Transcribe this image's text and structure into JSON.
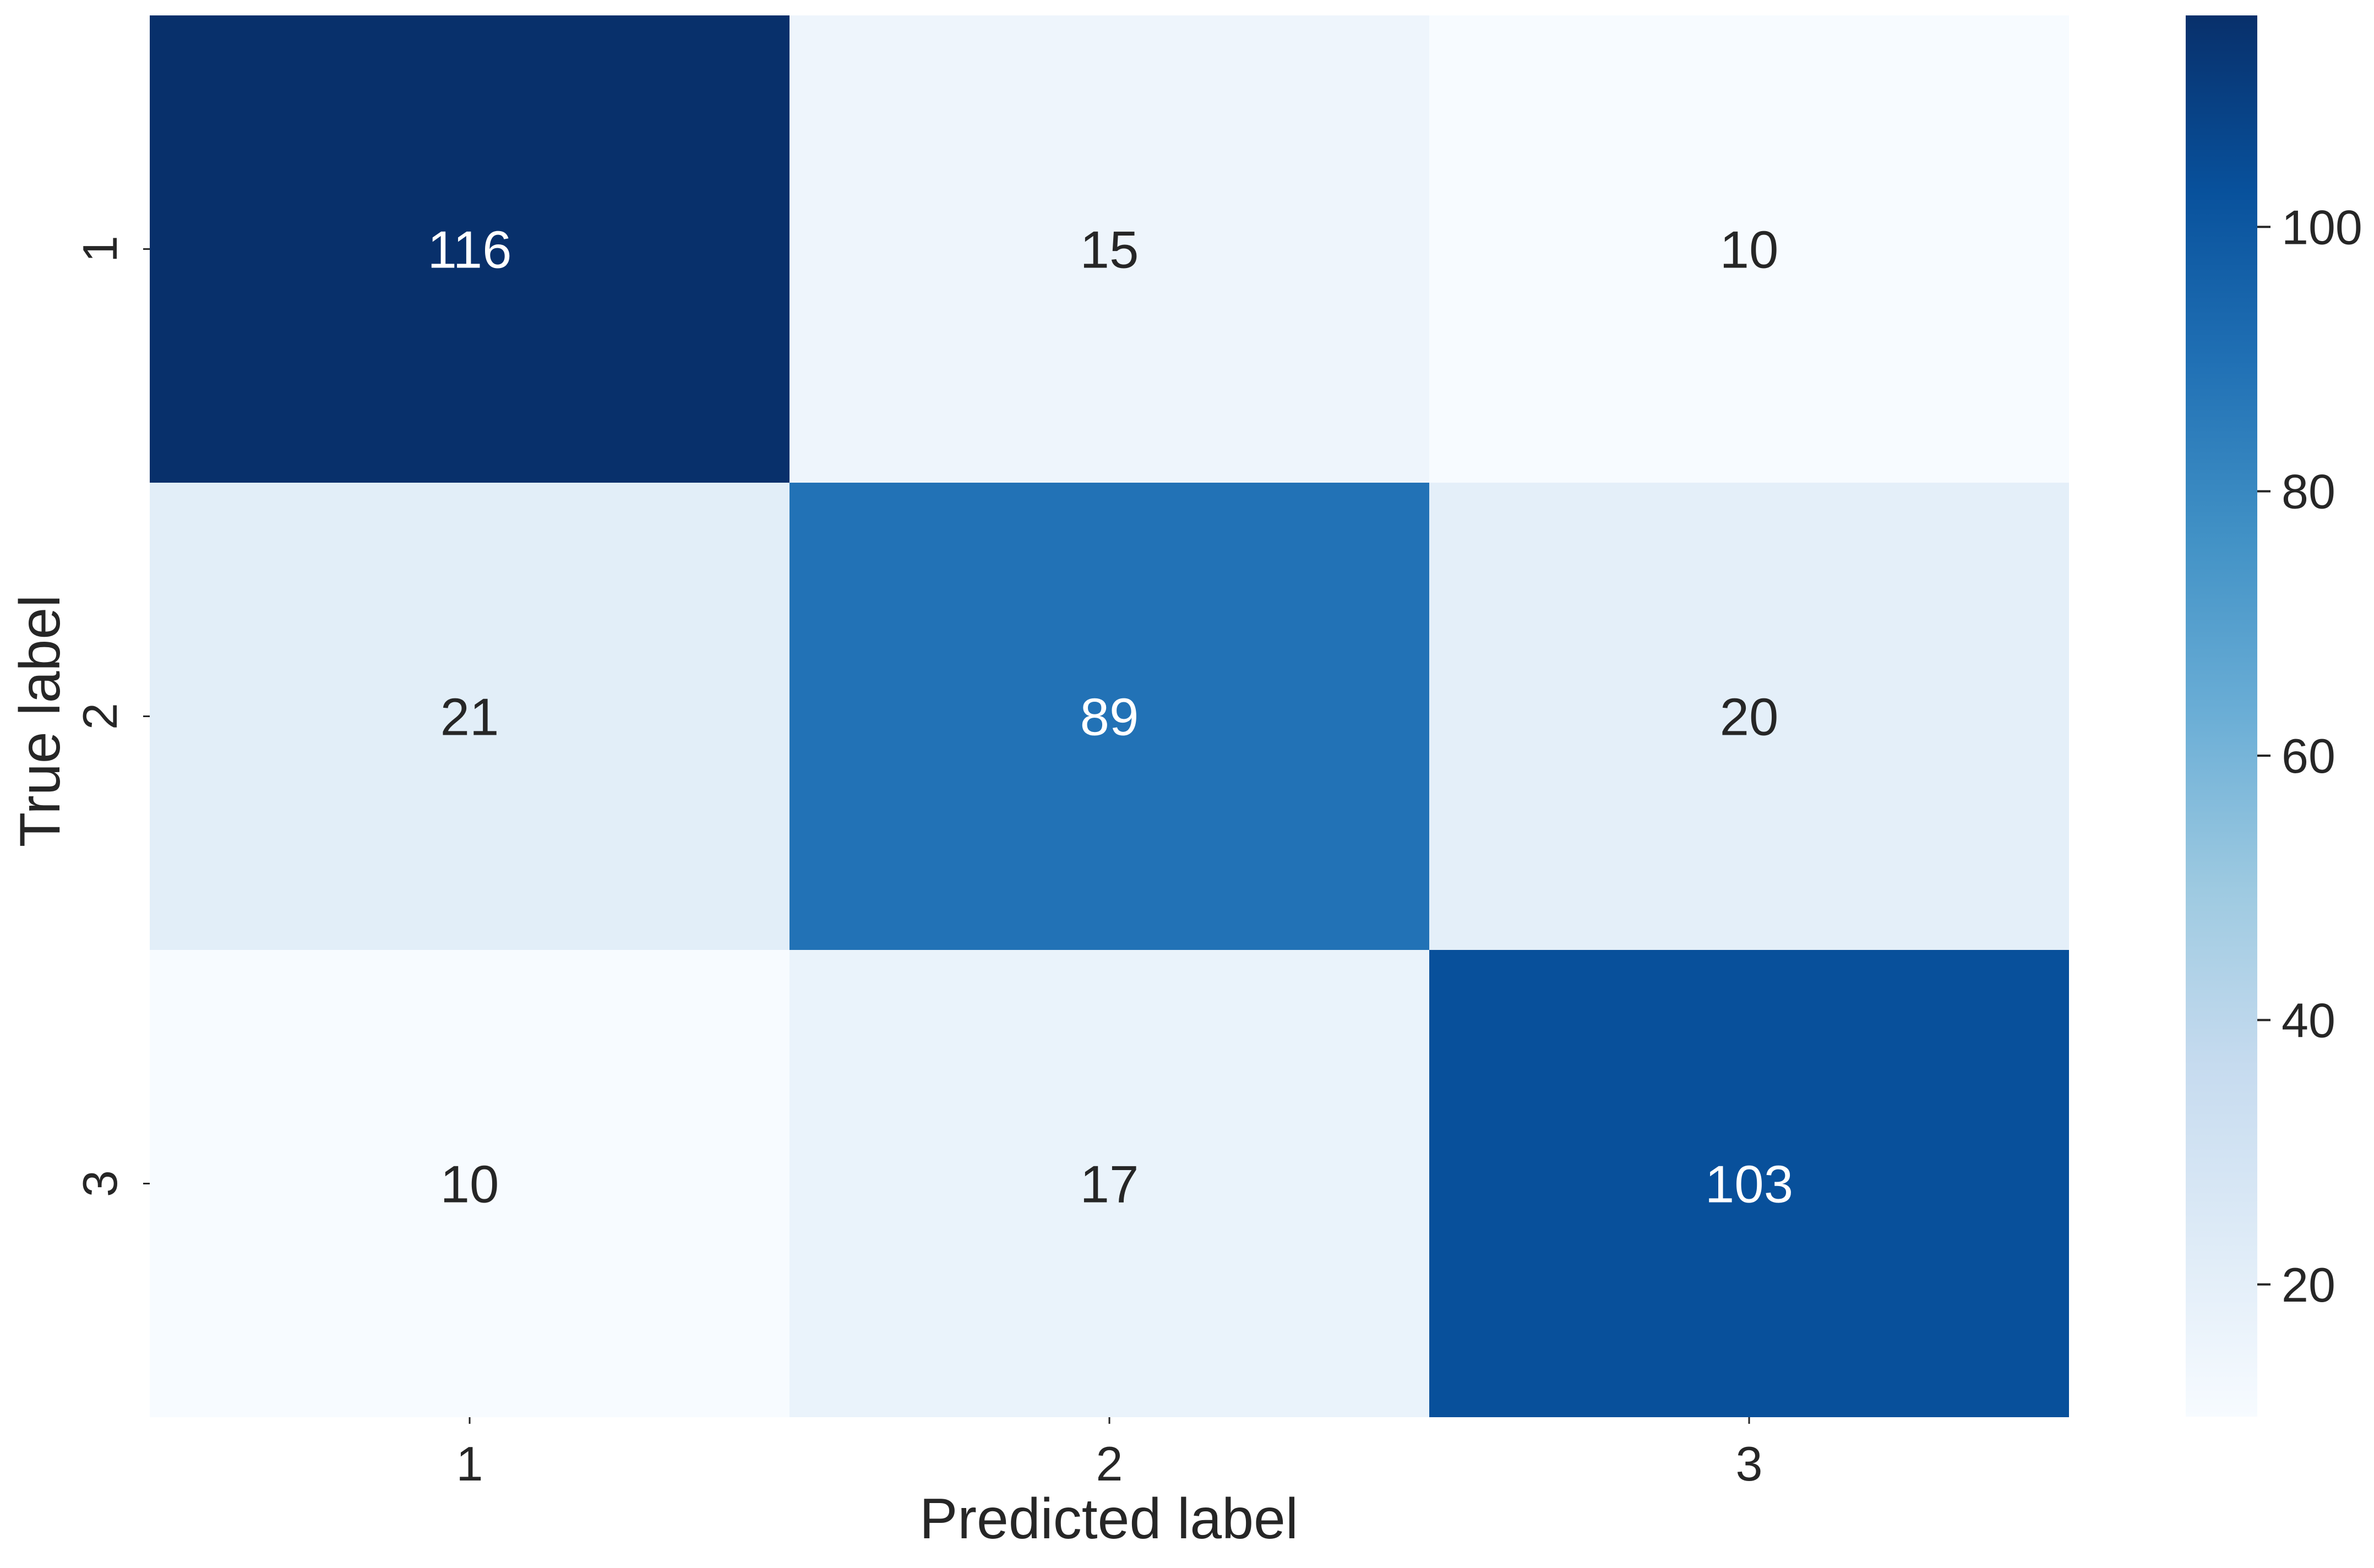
{
  "chart_data": {
    "type": "heatmap",
    "title": "",
    "xlabel": "Predicted label",
    "ylabel": "True label",
    "x_categories": [
      "1",
      "2",
      "3"
    ],
    "y_categories": [
      "1",
      "2",
      "3"
    ],
    "values": [
      [
        116,
        15,
        10
      ],
      [
        21,
        89,
        20
      ],
      [
        10,
        17,
        103
      ]
    ],
    "colormap": "Blues",
    "colormap_stops": [
      "#f7fbff",
      "#deebf7",
      "#c6dbef",
      "#9ecae1",
      "#6baed6",
      "#4292c6",
      "#2171b5",
      "#08519c",
      "#08306b"
    ],
    "colorbar": {
      "min": 10,
      "max": 116,
      "ticks": [
        "20",
        "40",
        "60",
        "80",
        "100"
      ]
    },
    "annotation_colors": {
      "light": "#ffffff",
      "dark": "#262626"
    },
    "text_color": "#262626",
    "grid": false,
    "legend": "colorbar-right"
  }
}
